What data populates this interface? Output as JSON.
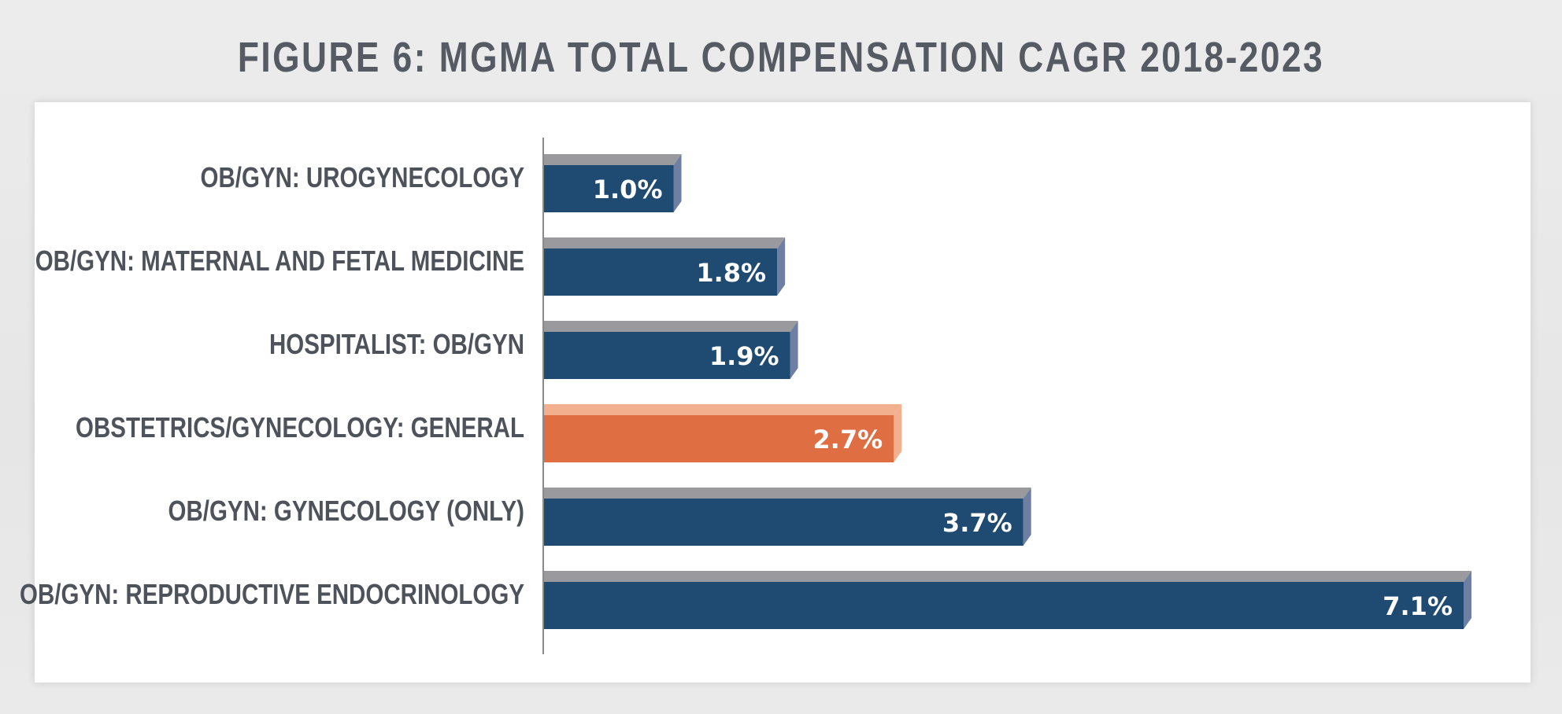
{
  "chart_data": {
    "type": "bar",
    "orientation": "horizontal",
    "title": "FIGURE 6: MGMA TOTAL COMPENSATION CAGR 2018-2023",
    "categories": [
      "OB/GYN: UROGYNECOLOGY",
      "OB/GYN: MATERNAL AND FETAL MEDICINE",
      "HOSPITALIST: OB/GYN",
      "OBSTETRICS/GYNECOLOGY: GENERAL",
      "OB/GYN: GYNECOLOGY (ONLY)",
      "OB/GYN: REPRODUCTIVE ENDOCRINOLOGY"
    ],
    "values": [
      1.0,
      1.8,
      1.9,
      2.7,
      3.7,
      7.1
    ],
    "value_labels": [
      "1.0%",
      "1.8%",
      "1.9%",
      "2.7%",
      "3.7%",
      "7.1%"
    ],
    "highlight_index": 3,
    "xlim": [
      0,
      7.1
    ],
    "xlabel": "",
    "ylabel": "",
    "grid": false,
    "colors": {
      "bar": "#1f4a72",
      "bar_top": "#9a9a9e",
      "bar_side": "#6d7fa3",
      "highlight": "#e06e43",
      "highlight_top": "#f2b08f",
      "highlight_side": "#f2b08f",
      "axis": "#8a8a8a"
    }
  }
}
